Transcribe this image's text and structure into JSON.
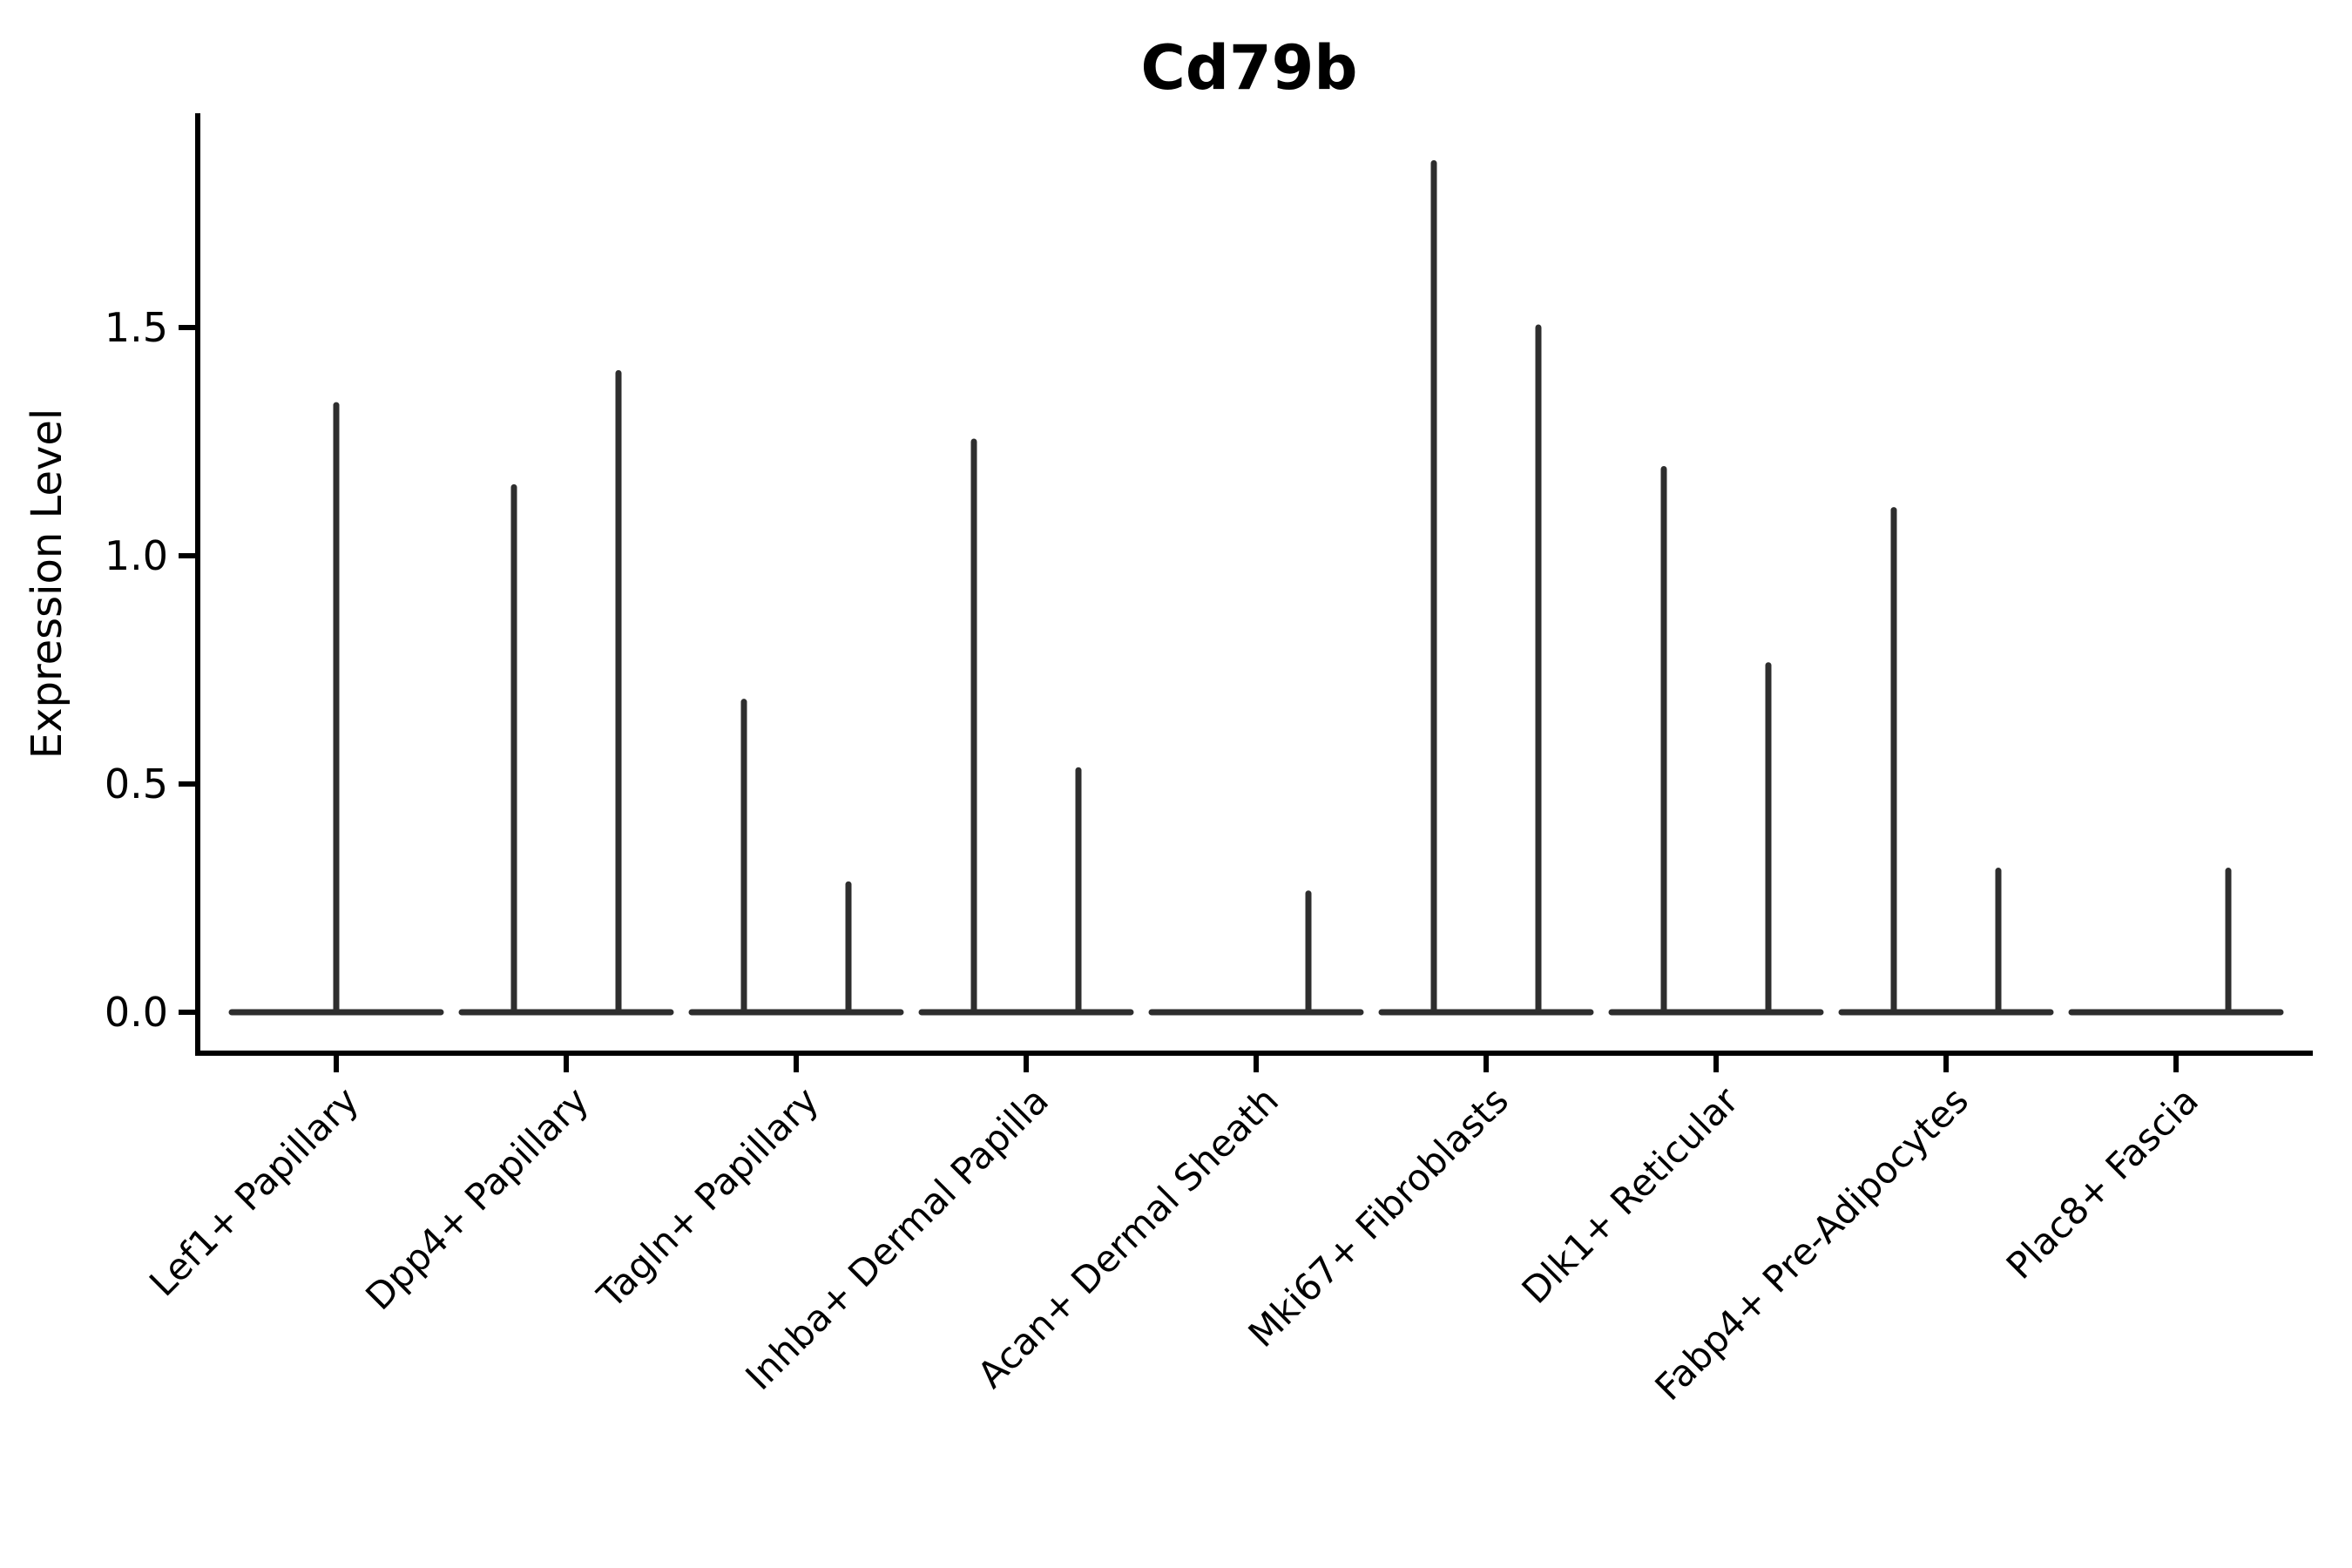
{
  "chart_data": {
    "type": "violin",
    "title": "Cd79b",
    "xlabel": "",
    "ylabel": "Expression Level",
    "ylim": [
      0.0,
      1.97
    ],
    "yticks": [
      0.0,
      0.5,
      1.0,
      1.5
    ],
    "ytick_labels": [
      "0.0",
      "0.5",
      "1.0",
      "1.5"
    ],
    "grid": false,
    "legend_position": "none",
    "background_color": "#ffffff",
    "spine_color": "#000000",
    "violin_color": "#2e2e2e",
    "x_tick_label_rotation_deg": 45,
    "categories": [
      "Lef1+ Papillary",
      "Dpp4+ Papillary",
      "Tagln+ Papillary",
      "Inhba+ Dermal Papilla",
      "Acan+ Dermal Sheath",
      "Mki67+ Fibroblasts",
      "Dlk1+ Reticular",
      "Fabp4+ Pre-Adipocytes",
      "Plac8+ Fascia"
    ],
    "description": "Needle-thin violins: each category shows a flat density base at expression 0 with narrow spikes rising to the maximum expression value; spikes sit at the dodged left/right group position (or centered when only one group is present).",
    "violins": [
      {
        "category": "Lef1+ Papillary",
        "baseline": 0.0,
        "spikes": [
          {
            "pos": "center",
            "max": 1.33
          }
        ]
      },
      {
        "category": "Dpp4+ Papillary",
        "baseline": 0.0,
        "spikes": [
          {
            "pos": "left",
            "max": 1.15
          },
          {
            "pos": "right",
            "max": 1.4
          }
        ]
      },
      {
        "category": "Tagln+ Papillary",
        "baseline": 0.0,
        "spikes": [
          {
            "pos": "left",
            "max": 0.68
          },
          {
            "pos": "right",
            "max": 0.28
          }
        ]
      },
      {
        "category": "Inhba+ Dermal Papilla",
        "baseline": 0.0,
        "spikes": [
          {
            "pos": "left",
            "max": 1.25
          },
          {
            "pos": "right",
            "max": 0.53
          }
        ]
      },
      {
        "category": "Acan+ Dermal Sheath",
        "baseline": 0.0,
        "spikes": [
          {
            "pos": "right",
            "max": 0.26
          }
        ]
      },
      {
        "category": "Mki67+ Fibroblasts",
        "baseline": 0.0,
        "spikes": [
          {
            "pos": "left",
            "max": 1.86
          },
          {
            "pos": "right",
            "max": 1.5
          }
        ]
      },
      {
        "category": "Dlk1+ Reticular",
        "baseline": 0.0,
        "spikes": [
          {
            "pos": "left",
            "max": 1.19
          },
          {
            "pos": "right",
            "max": 0.76
          }
        ]
      },
      {
        "category": "Fabp4+ Pre-Adipocytes",
        "baseline": 0.0,
        "spikes": [
          {
            "pos": "left",
            "max": 1.1
          },
          {
            "pos": "right",
            "max": 0.31
          }
        ]
      },
      {
        "category": "Plac8+ Fascia",
        "baseline": 0.0,
        "spikes": [
          {
            "pos": "right",
            "max": 0.31
          }
        ]
      }
    ]
  }
}
